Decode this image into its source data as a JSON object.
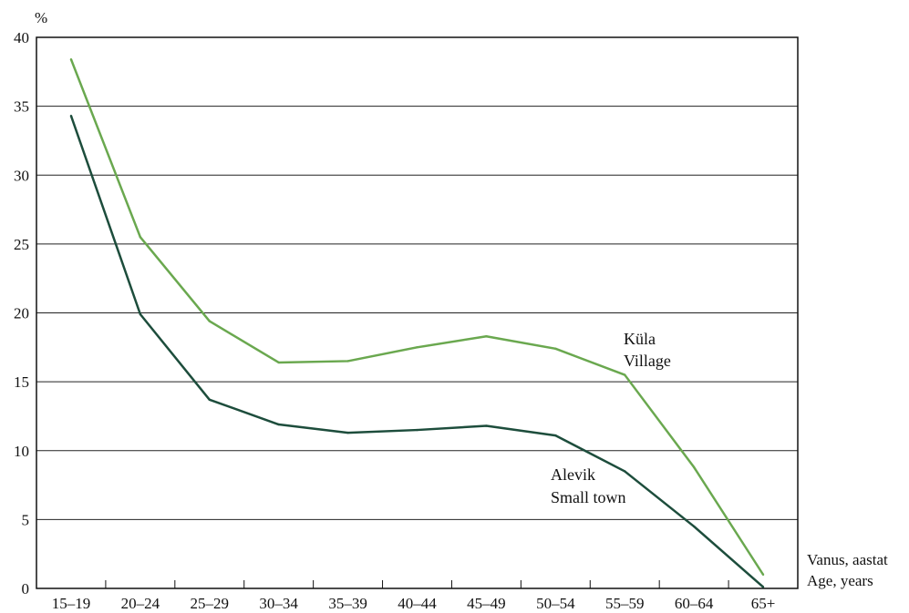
{
  "chart_data": {
    "type": "line",
    "title": "",
    "y_unit": "%",
    "xlabel": [
      "Vanus, aastat",
      "Age, years"
    ],
    "ylabel": "",
    "ylim": [
      0,
      40
    ],
    "yticks": [
      0,
      5,
      10,
      15,
      20,
      25,
      30,
      35,
      40
    ],
    "grid": true,
    "categories": [
      "15–19",
      "20–24",
      "25–29",
      "30–34",
      "35–39",
      "40–44",
      "45–49",
      "50–54",
      "55–59",
      "60–64",
      "65+"
    ],
    "series": [
      {
        "name": "Küla Village",
        "label_lines": [
          "Küla",
          "Village"
        ],
        "color": "#6aa84f",
        "values": [
          38.4,
          25.5,
          19.4,
          16.4,
          16.5,
          17.5,
          18.3,
          17.4,
          15.5,
          8.8,
          1.0
        ]
      },
      {
        "name": "Alevik Small town",
        "label_lines": [
          "Alevik",
          "Small town"
        ],
        "color": "#1d4d3c",
        "values": [
          34.3,
          19.9,
          13.7,
          11.9,
          11.3,
          11.5,
          11.8,
          11.1,
          8.5,
          4.5,
          0.1
        ]
      }
    ]
  }
}
